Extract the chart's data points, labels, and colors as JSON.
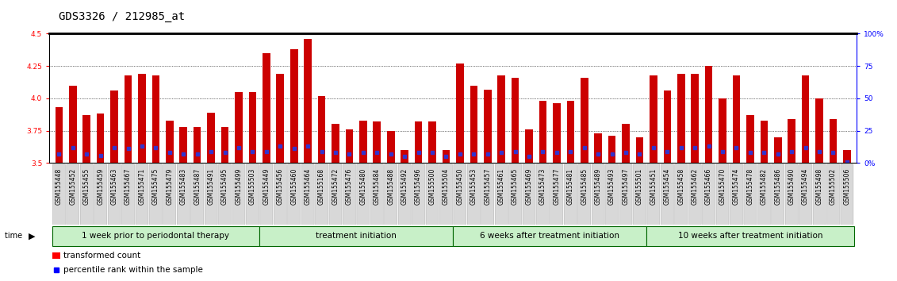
{
  "title": "GDS3326 / 212985_at",
  "samples": [
    "GSM155448",
    "GSM155452",
    "GSM155455",
    "GSM155459",
    "GSM155463",
    "GSM155467",
    "GSM155471",
    "GSM155475",
    "GSM155479",
    "GSM155483",
    "GSM155487",
    "GSM155491",
    "GSM155495",
    "GSM155499",
    "GSM155503",
    "GSM155449",
    "GSM155456",
    "GSM155460",
    "GSM155464",
    "GSM155168",
    "GSM155472",
    "GSM155476",
    "GSM155480",
    "GSM155484",
    "GSM155488",
    "GSM155492",
    "GSM155496",
    "GSM155500",
    "GSM155504",
    "GSM155450",
    "GSM155453",
    "GSM155457",
    "GSM155461",
    "GSM155465",
    "GSM155469",
    "GSM155473",
    "GSM155477",
    "GSM155481",
    "GSM155485",
    "GSM155489",
    "GSM155493",
    "GSM155497",
    "GSM155501",
    "GSM155451",
    "GSM155454",
    "GSM155458",
    "GSM155462",
    "GSM155466",
    "GSM155470",
    "GSM155474",
    "GSM155478",
    "GSM155482",
    "GSM155486",
    "GSM155490",
    "GSM155494",
    "GSM155498",
    "GSM155502",
    "GSM155506"
  ],
  "transformed_count": [
    3.93,
    4.1,
    3.87,
    3.88,
    4.06,
    4.18,
    4.19,
    4.18,
    3.83,
    3.78,
    3.78,
    3.89,
    3.78,
    4.05,
    4.05,
    4.35,
    4.19,
    4.38,
    4.46,
    4.02,
    3.8,
    3.76,
    3.83,
    3.82,
    3.75,
    3.6,
    3.82,
    3.82,
    3.6,
    4.27,
    4.1,
    4.07,
    4.18,
    4.16,
    3.76,
    3.98,
    3.96,
    3.98,
    4.16,
    3.73,
    3.71,
    3.8,
    3.7,
    4.18,
    4.06,
    4.19,
    4.19,
    4.25,
    4.0,
    4.18,
    3.87,
    3.83,
    3.7,
    3.84,
    4.18,
    4.0,
    3.84,
    3.6
  ],
  "percentile_rank_y": [
    3.57,
    3.62,
    3.57,
    3.56,
    3.62,
    3.61,
    3.63,
    3.62,
    3.58,
    3.57,
    3.57,
    3.59,
    3.58,
    3.62,
    3.59,
    3.59,
    3.63,
    3.61,
    3.63,
    3.59,
    3.58,
    3.57,
    3.58,
    3.58,
    3.57,
    3.55,
    3.58,
    3.58,
    3.55,
    3.57,
    3.57,
    3.57,
    3.58,
    3.59,
    3.55,
    3.59,
    3.58,
    3.59,
    3.62,
    3.57,
    3.57,
    3.58,
    3.57,
    3.62,
    3.59,
    3.62,
    3.62,
    3.63,
    3.59,
    3.62,
    3.58,
    3.58,
    3.57,
    3.59,
    3.62,
    3.59,
    3.58,
    3.51
  ],
  "group_sizes": [
    15,
    14,
    14,
    15
  ],
  "group_labels": [
    "1 week prior to periodontal therapy",
    "treatment initiation",
    "6 weeks after treatment initiation",
    "10 weeks after treatment initiation"
  ],
  "group_bg_color": "#c8f0c8",
  "group_border_color": "#006600",
  "bar_color": "#cc0000",
  "dot_color": "#3333cc",
  "ylim_left": [
    3.5,
    4.5
  ],
  "ylim_right": [
    0,
    100
  ],
  "yticks_left": [
    3.5,
    3.75,
    4.0,
    4.25,
    4.5
  ],
  "yticks_right": [
    0,
    25,
    50,
    75,
    100
  ],
  "plot_bg_color": "#ffffff",
  "bar_width": 0.55,
  "title_fontsize": 10,
  "tick_fontsize": 5.5,
  "label_fontsize": 7.5
}
